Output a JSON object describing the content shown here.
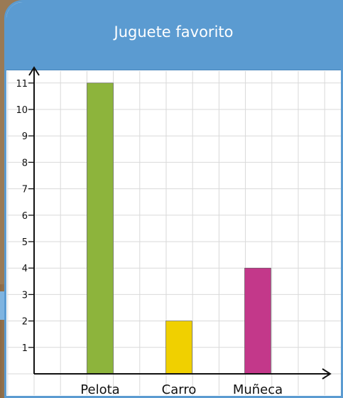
{
  "chart_data": {
    "type": "bar",
    "title": "Juguete favorito",
    "categories": [
      "Pelota",
      "Carro",
      "Muñeca"
    ],
    "values": [
      11,
      2,
      4
    ],
    "colors": [
      "#8db43c",
      "#f0d000",
      "#c3388a"
    ],
    "xlabel": "",
    "ylabel": "",
    "ylim": [
      0,
      11
    ],
    "yticks": [
      1,
      2,
      3,
      4,
      5,
      6,
      7,
      8,
      9,
      10,
      11
    ],
    "grid": true
  },
  "colors": {
    "header": "#5b9bd1",
    "grid": "#d9d9d9",
    "axis": "#111111"
  }
}
